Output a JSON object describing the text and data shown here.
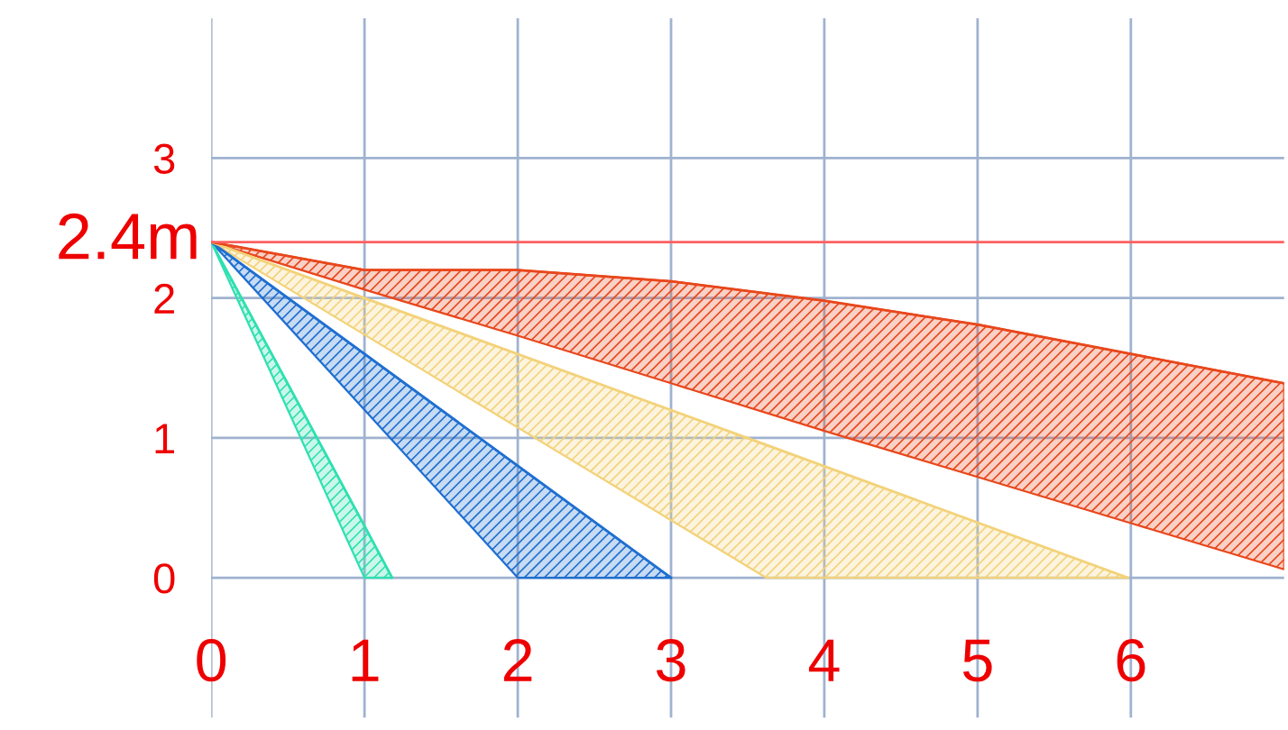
{
  "chart_data": {
    "type": "line",
    "series": [
      {
        "color": "#30e0b0",
        "x": [
          0,
          1,
          1.18
        ],
        "values": [
          2.4,
          0.37,
          0
        ],
        "lower": [
          2.4,
          0,
          0
        ],
        "upper": [
          2.4,
          0.37,
          0
        ]
      },
      {
        "color": "#1f6fd0",
        "x": [
          0,
          2,
          3
        ],
        "values": [
          2.4,
          0.8,
          0
        ],
        "lower": [
          2.4,
          0,
          0
        ],
        "upper": [
          2.4,
          0.8,
          0
        ]
      },
      {
        "color": "#f3d27a",
        "x": [
          0,
          3.62,
          5.98
        ],
        "values": [
          2.4,
          0.95,
          0
        ],
        "lower": [
          2.4,
          0,
          0
        ],
        "upper": [
          2.4,
          0.95,
          0
        ]
      },
      {
        "color": "#e8471c",
        "x": [
          0,
          1,
          2,
          3,
          4,
          5,
          6,
          7
        ],
        "values": [
          2.4,
          2.2,
          2.2,
          2.12,
          1.98,
          1.81,
          1.6,
          1.39
        ],
        "lower": [
          2.4,
          2.06,
          1.73,
          1.39,
          1.05,
          0.72,
          0.39,
          0.06
        ],
        "upper": [
          2.4,
          2.2,
          2.2,
          2.12,
          1.98,
          1.81,
          1.6,
          1.39
        ]
      }
    ],
    "xlim": [
      0,
      7
    ],
    "ylim": [
      -1,
      4
    ],
    "xticks": [
      0,
      1,
      2,
      3,
      4,
      5,
      6
    ],
    "yticks": [
      0,
      1,
      2,
      3
    ],
    "ref_lines": [
      {
        "axis": "y",
        "value": 2.4,
        "label": "2.4m",
        "color": "#ff6060"
      }
    ],
    "grid": true
  }
}
